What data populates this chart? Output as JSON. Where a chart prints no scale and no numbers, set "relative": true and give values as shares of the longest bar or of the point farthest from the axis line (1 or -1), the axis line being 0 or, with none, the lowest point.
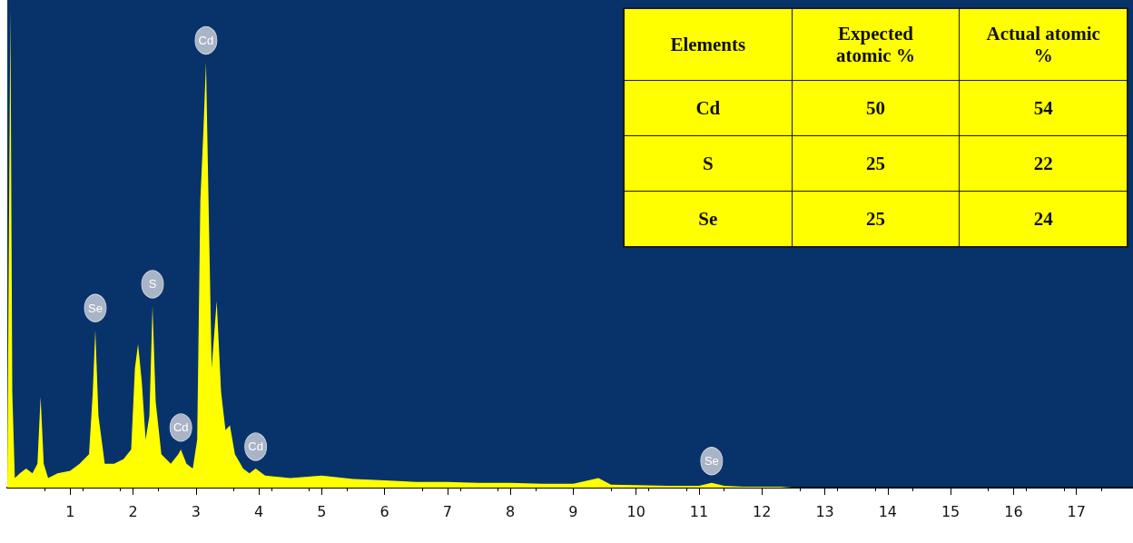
{
  "chart_data": [
    {
      "type": "area",
      "relative": true,
      "marker": "none",
      "xlim": [
        0,
        17.9
      ],
      "xticks": [
        1,
        2,
        3,
        4,
        5,
        6,
        7,
        8,
        9,
        10,
        11,
        12,
        13,
        14,
        15,
        16,
        17
      ],
      "x": [
        0,
        0.05,
        0.08,
        0.12,
        0.2,
        0.3,
        0.4,
        0.48,
        0.53,
        0.58,
        0.65,
        0.8,
        1.0,
        1.15,
        1.3,
        1.36,
        1.4,
        1.45,
        1.55,
        1.7,
        1.85,
        1.97,
        2.03,
        2.08,
        2.14,
        2.2,
        2.26,
        2.31,
        2.36,
        2.45,
        2.6,
        2.72,
        2.76,
        2.85,
        2.95,
        3.02,
        3.07,
        3.12,
        3.16,
        3.2,
        3.25,
        3.33,
        3.4,
        3.47,
        3.54,
        3.62,
        3.75,
        3.85,
        3.95,
        4.1,
        4.5,
        5.0,
        5.5,
        6.0,
        6.5,
        7.0,
        7.5,
        8.0,
        8.5,
        9.0,
        9.4,
        9.6,
        10.0,
        10.5,
        11.0,
        11.2,
        11.4,
        11.7,
        12.3,
        12.5,
        17.9
      ],
      "series": [
        {
          "color": "#ffff00",
          "values": [
            0,
            1.0,
            0.2,
            0.02,
            0.03,
            0.04,
            0.03,
            0.05,
            0.19,
            0.05,
            0.02,
            0.03,
            0.035,
            0.05,
            0.07,
            0.2,
            0.33,
            0.15,
            0.05,
            0.05,
            0.06,
            0.08,
            0.25,
            0.3,
            0.22,
            0.1,
            0.15,
            0.38,
            0.18,
            0.07,
            0.05,
            0.07,
            0.08,
            0.05,
            0.04,
            0.1,
            0.6,
            0.75,
            0.89,
            0.6,
            0.25,
            0.39,
            0.2,
            0.12,
            0.13,
            0.07,
            0.04,
            0.03,
            0.04,
            0.025,
            0.02,
            0.025,
            0.018,
            0.015,
            0.012,
            0.012,
            0.01,
            0.01,
            0.008,
            0.008,
            0.02,
            0.006,
            0.005,
            0.004,
            0.004,
            0.01,
            0.004,
            0.002,
            0.002,
            0,
            0
          ]
        }
      ],
      "annotations": [
        {
          "text": "Se",
          "x": 1.4,
          "y": 0.33
        },
        {
          "text": "S",
          "x": 2.31,
          "y": 0.38
        },
        {
          "text": "Cd",
          "x": 2.76,
          "y": 0.08
        },
        {
          "text": "Cd",
          "x": 3.16,
          "y": 0.89
        },
        {
          "text": "Cd",
          "x": 3.95,
          "y": 0.04
        },
        {
          "text": "Se",
          "x": 11.2,
          "y": 0.01
        }
      ]
    },
    {
      "type": "other",
      "annotations": [
        "Elements",
        "Expected atomic %",
        "Actual atomic %",
        "Cd",
        "50",
        "54",
        "S",
        "25",
        "22",
        "Se",
        "25",
        "24"
      ]
    }
  ]
}
